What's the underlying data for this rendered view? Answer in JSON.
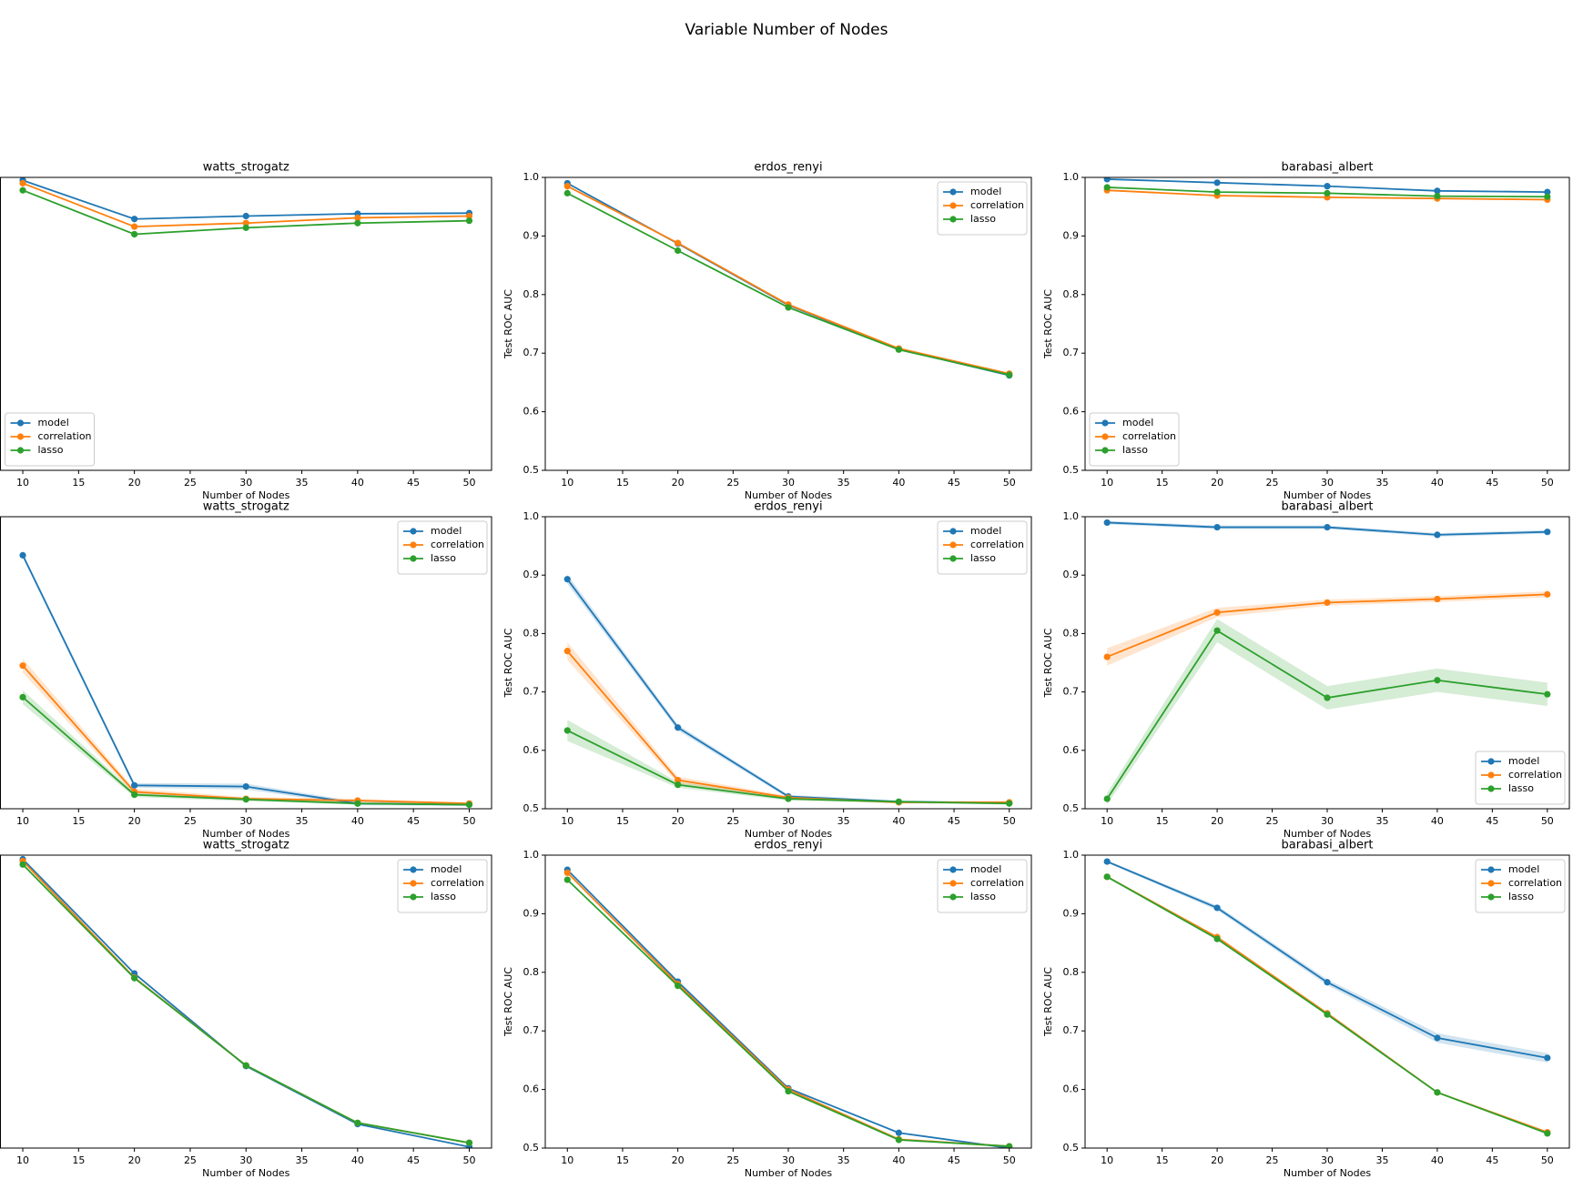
{
  "title": "Variable Number of Nodes",
  "chart_data": [
    {
      "type": "line",
      "title": "watts_strogatz",
      "xlabel": "Number of Nodes",
      "x": [
        10,
        20,
        30,
        40,
        50
      ],
      "xlim": [
        8,
        52
      ],
      "xticks": [
        10,
        15,
        20,
        25,
        30,
        35,
        40,
        45,
        50
      ],
      "ylim": [
        0.5,
        1.0
      ],
      "legend": "lower left",
      "series": [
        {
          "name": "model",
          "color": "#1f77b4",
          "values": [
            0.995,
            0.929,
            0.934,
            0.938,
            0.939
          ]
        },
        {
          "name": "correlation",
          "color": "#ff7f0e",
          "values": [
            0.99,
            0.916,
            0.922,
            0.931,
            0.934
          ]
        },
        {
          "name": "lasso",
          "color": "#2ca02c",
          "values": [
            0.978,
            0.903,
            0.914,
            0.922,
            0.926
          ]
        }
      ]
    },
    {
      "type": "line",
      "title": "erdos_renyi",
      "xlabel": "Number of Nodes",
      "ylabel": "Test ROC AUC",
      "x": [
        10,
        20,
        30,
        40,
        50
      ],
      "xlim": [
        8,
        52
      ],
      "xticks": [
        10,
        15,
        20,
        25,
        30,
        35,
        40,
        45,
        50
      ],
      "ylim": [
        0.5,
        1.0
      ],
      "yticks": [
        0.5,
        0.6,
        0.7,
        0.8,
        0.9,
        {
          "value": 1,
          "label": "1.0"
        }
      ],
      "legend": "upper right",
      "series": [
        {
          "name": "model",
          "color": "#1f77b4",
          "values": [
            0.99,
            0.887,
            0.782,
            0.707,
            0.662
          ]
        },
        {
          "name": "correlation",
          "color": "#ff7f0e",
          "values": [
            0.985,
            0.888,
            0.783,
            0.708,
            0.665
          ]
        },
        {
          "name": "lasso",
          "color": "#2ca02c",
          "values": [
            0.973,
            0.875,
            0.778,
            0.706,
            0.663
          ]
        }
      ]
    },
    {
      "type": "line",
      "title": "barabasi_albert",
      "xlabel": "Number of Nodes",
      "ylabel": "Test ROC AUC",
      "x": [
        10,
        20,
        30,
        40,
        50
      ],
      "xlim": [
        8,
        52
      ],
      "xticks": [
        10,
        15,
        20,
        25,
        30,
        35,
        40,
        45,
        50
      ],
      "ylim": [
        0.5,
        1.0
      ],
      "yticks": [
        0.5,
        0.6,
        0.7,
        0.8,
        0.9,
        {
          "value": 1,
          "label": "1.0"
        }
      ],
      "legend": "lower left",
      "series": [
        {
          "name": "model",
          "color": "#1f77b4",
          "values": [
            0.997,
            0.991,
            0.985,
            0.977,
            0.975
          ]
        },
        {
          "name": "correlation",
          "color": "#ff7f0e",
          "values": [
            0.978,
            0.969,
            0.966,
            0.964,
            0.962
          ]
        },
        {
          "name": "lasso",
          "color": "#2ca02c",
          "values": [
            0.983,
            0.975,
            0.973,
            0.968,
            0.967
          ]
        }
      ]
    },
    {
      "type": "line",
      "title": "watts_strogatz",
      "xlabel": "Number of Nodes",
      "x": [
        10,
        20,
        30,
        40,
        50
      ],
      "xlim": [
        8,
        52
      ],
      "xticks": [
        10,
        15,
        20,
        25,
        30,
        35,
        40,
        45,
        50
      ],
      "ylim": [
        0.5,
        1.0
      ],
      "legend": "upper right",
      "series": [
        {
          "name": "model",
          "color": "#1f77b4",
          "values": [
            0.934,
            0.54,
            0.538,
            0.509,
            0.507
          ],
          "ci": [
            0.004,
            0.004,
            0.005,
            0.003,
            0.002
          ]
        },
        {
          "name": "correlation",
          "color": "#ff7f0e",
          "values": [
            0.745,
            0.529,
            0.517,
            0.514,
            0.509
          ],
          "ci": [
            0.012,
            0.005,
            0.003,
            0.003,
            0.002
          ]
        },
        {
          "name": "lasso",
          "color": "#2ca02c",
          "values": [
            0.691,
            0.524,
            0.516,
            0.509,
            0.507
          ],
          "ci": [
            0.012,
            0.004,
            0.003,
            0.002,
            0.002
          ]
        }
      ]
    },
    {
      "type": "line",
      "title": "erdos_renyi",
      "xlabel": "Number of Nodes",
      "ylabel": "Test ROC AUC",
      "x": [
        10,
        20,
        30,
        40,
        50
      ],
      "xlim": [
        8,
        52
      ],
      "xticks": [
        10,
        15,
        20,
        25,
        30,
        35,
        40,
        45,
        50
      ],
      "ylim": [
        0.5,
        1.0
      ],
      "yticks": [
        0.5,
        0.6,
        0.7,
        0.8,
        0.9,
        {
          "value": 1,
          "label": "1.0"
        }
      ],
      "legend": "upper right",
      "series": [
        {
          "name": "model",
          "color": "#1f77b4",
          "values": [
            0.893,
            0.639,
            0.521,
            0.512,
            0.51
          ],
          "ci": [
            0.008,
            0.005,
            0.003,
            0.002,
            0.002
          ]
        },
        {
          "name": "correlation",
          "color": "#ff7f0e",
          "values": [
            0.77,
            0.549,
            0.519,
            0.511,
            0.511
          ],
          "ci": [
            0.015,
            0.006,
            0.003,
            0.002,
            0.002
          ]
        },
        {
          "name": "lasso",
          "color": "#2ca02c",
          "values": [
            0.634,
            0.541,
            0.517,
            0.512,
            0.509
          ],
          "ci": [
            0.018,
            0.005,
            0.003,
            0.002,
            0.002
          ]
        }
      ]
    },
    {
      "type": "line",
      "title": "barabasi_albert",
      "xlabel": "Number of Nodes",
      "ylabel": "Test ROC AUC",
      "x": [
        10,
        20,
        30,
        40,
        50
      ],
      "xlim": [
        8,
        52
      ],
      "xticks": [
        10,
        15,
        20,
        25,
        30,
        35,
        40,
        45,
        50
      ],
      "ylim": [
        0.5,
        1.0
      ],
      "yticks": [
        0.5,
        0.6,
        0.7,
        0.8,
        0.9,
        {
          "value": 1,
          "label": "1.0"
        }
      ],
      "legend": "lower right",
      "series": [
        {
          "name": "model",
          "color": "#1f77b4",
          "values": [
            0.99,
            0.982,
            0.982,
            0.969,
            0.974
          ],
          "ci": [
            0.003,
            0.003,
            0.003,
            0.003,
            0.003
          ]
        },
        {
          "name": "correlation",
          "color": "#ff7f0e",
          "values": [
            0.76,
            0.836,
            0.853,
            0.859,
            0.867
          ],
          "ci": [
            0.015,
            0.008,
            0.005,
            0.005,
            0.005
          ]
        },
        {
          "name": "lasso",
          "color": "#2ca02c",
          "values": [
            0.517,
            0.805,
            0.69,
            0.72,
            0.696
          ],
          "ci": [
            0.01,
            0.02,
            0.02,
            0.02,
            0.02
          ]
        }
      ]
    },
    {
      "type": "line",
      "title": "watts_strogatz",
      "xlabel": "Number of Nodes",
      "x": [
        10,
        20,
        30,
        40,
        50
      ],
      "xlim": [
        8,
        52
      ],
      "xticks": [
        10,
        15,
        20,
        25,
        30,
        35,
        40,
        45,
        50
      ],
      "ylim": [
        0.5,
        1.0
      ],
      "legend": "upper right",
      "series": [
        {
          "name": "model",
          "color": "#1f77b4",
          "values": [
            0.993,
            0.798,
            0.64,
            0.541,
            0.502
          ]
        },
        {
          "name": "correlation",
          "color": "#ff7f0e",
          "values": [
            0.99,
            0.791,
            0.641,
            0.543,
            0.509
          ]
        },
        {
          "name": "lasso",
          "color": "#2ca02c",
          "values": [
            0.984,
            0.79,
            0.641,
            0.543,
            0.509
          ]
        }
      ]
    },
    {
      "type": "line",
      "title": "erdos_renyi",
      "xlabel": "Number of Nodes",
      "ylabel": "Test ROC AUC",
      "x": [
        10,
        20,
        30,
        40,
        50
      ],
      "xlim": [
        8,
        52
      ],
      "xticks": [
        10,
        15,
        20,
        25,
        30,
        35,
        40,
        45,
        50
      ],
      "ylim": [
        0.5,
        1.0
      ],
      "yticks": [
        0.5,
        0.6,
        0.7,
        0.8,
        0.9,
        {
          "value": 1,
          "label": "1.0"
        }
      ],
      "legend": "upper right",
      "series": [
        {
          "name": "model",
          "color": "#1f77b4",
          "values": [
            0.975,
            0.784,
            0.602,
            0.526,
            0.5
          ]
        },
        {
          "name": "correlation",
          "color": "#ff7f0e",
          "values": [
            0.97,
            0.78,
            0.6,
            0.515,
            0.503
          ]
        },
        {
          "name": "lasso",
          "color": "#2ca02c",
          "values": [
            0.958,
            0.777,
            0.597,
            0.514,
            0.503
          ]
        }
      ]
    },
    {
      "type": "line",
      "title": "barabasi_albert",
      "xlabel": "Number of Nodes",
      "ylabel": "Test ROC AUC",
      "x": [
        10,
        20,
        30,
        40,
        50
      ],
      "xlim": [
        8,
        52
      ],
      "xticks": [
        10,
        15,
        20,
        25,
        30,
        35,
        40,
        45,
        50
      ],
      "ylim": [
        0.5,
        1.0
      ],
      "yticks": [
        0.5,
        0.6,
        0.7,
        0.8,
        0.9,
        {
          "value": 1,
          "label": "1.0"
        }
      ],
      "legend": "upper right",
      "series": [
        {
          "name": "model",
          "color": "#1f77b4",
          "values": [
            0.989,
            0.91,
            0.783,
            0.688,
            0.654
          ],
          "ci": [
            0.002,
            0.004,
            0.005,
            0.008,
            0.008
          ]
        },
        {
          "name": "correlation",
          "color": "#ff7f0e",
          "values": [
            0.963,
            0.86,
            0.73,
            0.595,
            0.527
          ]
        },
        {
          "name": "lasso",
          "color": "#2ca02c",
          "values": [
            0.963,
            0.857,
            0.728,
            0.595,
            0.525
          ]
        }
      ]
    }
  ]
}
